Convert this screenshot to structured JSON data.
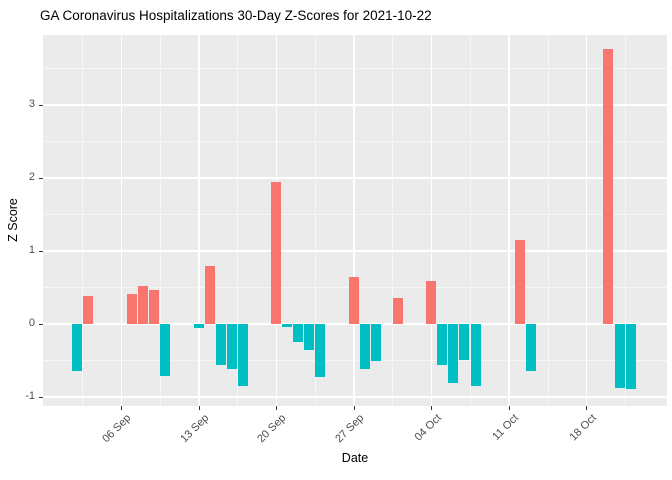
{
  "title": "GA Coronavirus Hospitalizations 30-Day Z-Scores for 2021-10-22",
  "colors": {
    "positive_bar": "#F8766D",
    "negative_bar": "#00BFC4",
    "panel_background": "#EBEBEB",
    "gridline": "#FFFFFF",
    "tick_label": "#4D4D4D",
    "tick_mark": "#333333",
    "title_text": "#000000"
  },
  "chart_data": {
    "type": "bar",
    "title": "GA Coronavirus Hospitalizations 30-Day Z-Scores for 2021-10-22",
    "xlabel": "Date",
    "ylabel": "Z Score",
    "ylim": [
      -1.13,
      3.96
    ],
    "grid": "on",
    "legend": "none",
    "bar_color_positive": "#F8766D",
    "bar_color_negative": "#00BFC4",
    "y_ticks": [
      {
        "label": "3",
        "z": 3
      },
      {
        "label": "2",
        "z": 2
      },
      {
        "label": "1",
        "z": 1
      },
      {
        "label": "0",
        "z": 0
      },
      {
        "label": "-1",
        "z": -1
      }
    ],
    "y_minor": [
      3.5,
      2.5,
      1.5,
      0.5,
      -0.5
    ],
    "x_ticks": [
      {
        "label": "06 Sep",
        "day": 0
      },
      {
        "label": "13 Sep",
        "day": 7
      },
      {
        "label": "20 Sep",
        "day": 14
      },
      {
        "label": "27 Sep",
        "day": 21
      },
      {
        "label": "04 Oct",
        "day": 28
      },
      {
        "label": "11 Oct",
        "day": 35
      },
      {
        "label": "18 Oct",
        "day": 42
      }
    ],
    "x_minor_days": [
      -3.5,
      3.5,
      10.5,
      17.5,
      24.5,
      31.5,
      38.5,
      45.5
    ],
    "points": [
      {
        "date": "2021-09-02",
        "day": -4,
        "z": -0.65
      },
      {
        "date": "2021-09-03",
        "day": -3,
        "z": 0.38
      },
      {
        "date": "2021-09-07",
        "day": 1,
        "z": 0.41
      },
      {
        "date": "2021-09-08",
        "day": 2,
        "z": 0.51
      },
      {
        "date": "2021-09-09",
        "day": 3,
        "z": 0.46
      },
      {
        "date": "2021-09-10",
        "day": 4,
        "z": -0.72
      },
      {
        "date": "2021-09-13",
        "day": 7,
        "z": -0.06
      },
      {
        "date": "2021-09-14",
        "day": 8,
        "z": 0.79
      },
      {
        "date": "2021-09-15",
        "day": 9,
        "z": -0.57
      },
      {
        "date": "2021-09-16",
        "day": 10,
        "z": -0.62
      },
      {
        "date": "2021-09-17",
        "day": 11,
        "z": -0.86
      },
      {
        "date": "2021-09-20",
        "day": 14,
        "z": 1.94
      },
      {
        "date": "2021-09-21",
        "day": 15,
        "z": -0.05
      },
      {
        "date": "2021-09-22",
        "day": 16,
        "z": -0.25
      },
      {
        "date": "2021-09-23",
        "day": 17,
        "z": -0.36
      },
      {
        "date": "2021-09-24",
        "day": 18,
        "z": -0.73
      },
      {
        "date": "2021-09-27",
        "day": 21,
        "z": 0.64
      },
      {
        "date": "2021-09-28",
        "day": 22,
        "z": -0.62
      },
      {
        "date": "2021-09-29",
        "day": 23,
        "z": -0.51
      },
      {
        "date": "2021-10-01",
        "day": 25,
        "z": 0.35
      },
      {
        "date": "2021-10-04",
        "day": 28,
        "z": 0.58
      },
      {
        "date": "2021-10-05",
        "day": 29,
        "z": -0.57
      },
      {
        "date": "2021-10-06",
        "day": 30,
        "z": -0.81
      },
      {
        "date": "2021-10-07",
        "day": 31,
        "z": -0.5
      },
      {
        "date": "2021-10-08",
        "day": 32,
        "z": -0.85
      },
      {
        "date": "2021-10-12",
        "day": 36,
        "z": 1.15
      },
      {
        "date": "2021-10-13",
        "day": 37,
        "z": -0.65
      },
      {
        "date": "2021-10-20",
        "day": 44,
        "z": 3.76
      },
      {
        "date": "2021-10-21",
        "day": 45,
        "z": -0.88
      },
      {
        "date": "2021-10-22",
        "day": 46,
        "z": -0.9
      }
    ]
  }
}
